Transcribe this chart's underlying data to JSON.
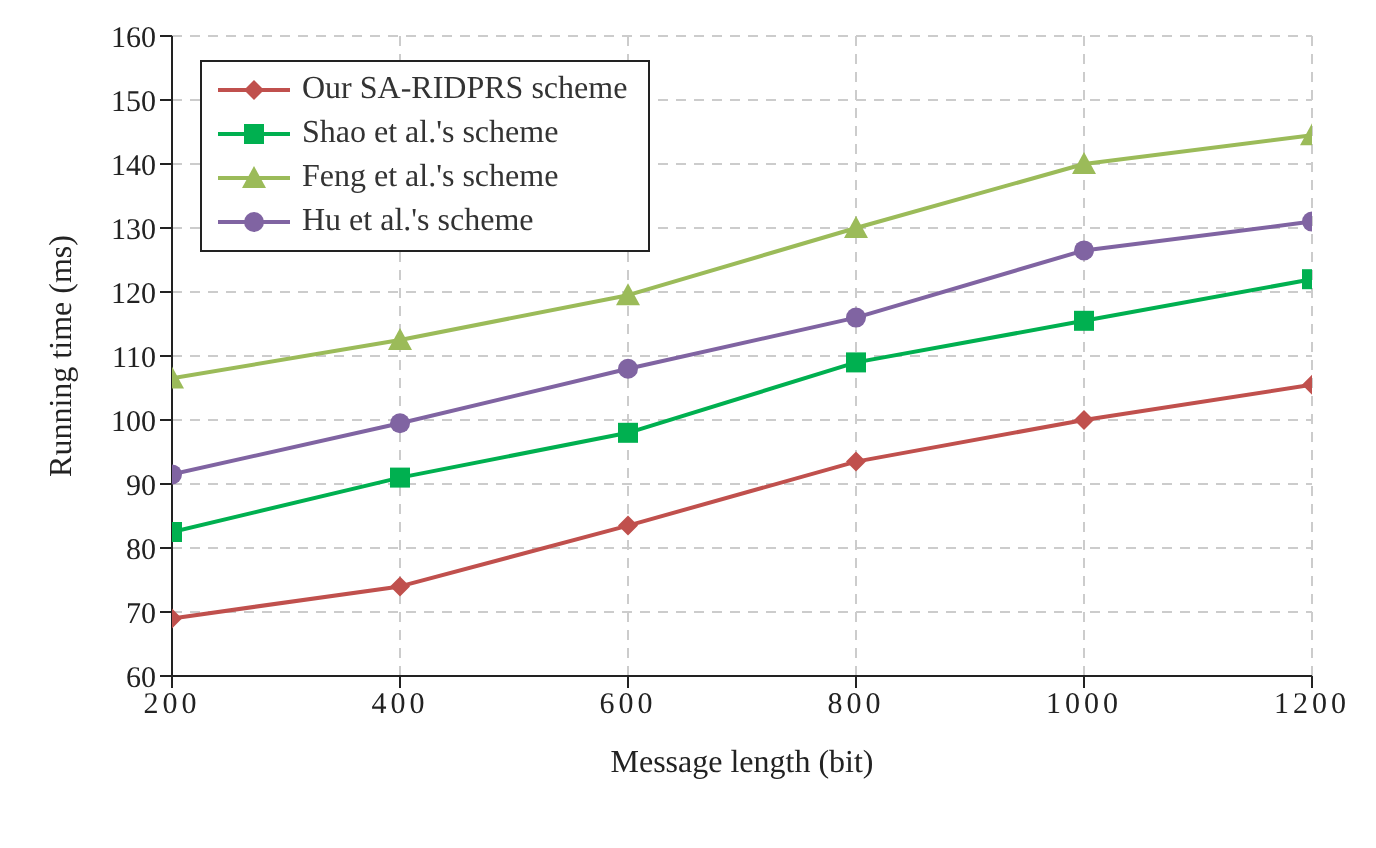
{
  "chart_data": {
    "type": "line",
    "xlabel": "Message length (bit)",
    "ylabel": "Running time (ms)",
    "x": [
      200,
      400,
      600,
      800,
      1000,
      1200
    ],
    "xlim": [
      200,
      1200
    ],
    "xticks": [
      200,
      400,
      600,
      800,
      1000,
      1200
    ],
    "ylim": [
      60,
      160
    ],
    "yticks": [
      60,
      70,
      80,
      90,
      100,
      110,
      120,
      130,
      140,
      150,
      160
    ],
    "grid": true,
    "legend": "top left",
    "line_style": "solid",
    "series": [
      {
        "name": "Our SA-RIDPRS scheme",
        "color": "#c0504d",
        "marker": "diamond",
        "values": [
          69,
          74,
          83.5,
          93.5,
          100,
          105.5
        ]
      },
      {
        "name": "Shao et al.'s scheme",
        "color": "#00b050",
        "marker": "square",
        "values": [
          82.5,
          91,
          98,
          109,
          115.5,
          122
        ]
      },
      {
        "name": "Feng et al.'s scheme",
        "color": "#9bbb59",
        "marker": "triangle",
        "values": [
          106.5,
          112.5,
          119.5,
          130,
          140,
          144.5
        ]
      },
      {
        "name": "Hu et al.'s scheme",
        "color": "#8064a2",
        "marker": "circle",
        "values": [
          91.5,
          99.5,
          108,
          116,
          126.5,
          131
        ]
      }
    ]
  }
}
